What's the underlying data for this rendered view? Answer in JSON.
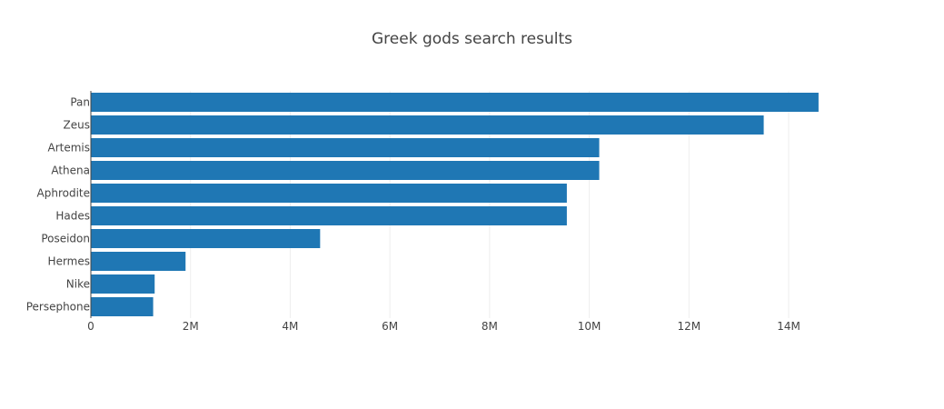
{
  "chart_data": {
    "type": "bar",
    "orientation": "horizontal",
    "title": "Greek gods search results",
    "xlabel": "",
    "ylabel": "",
    "categories": [
      "Pan",
      "Zeus",
      "Artemis",
      "Athena",
      "Aphrodite",
      "Hades",
      "Poseidon",
      "Hermes",
      "Nike",
      "Persephone"
    ],
    "values": [
      14600000,
      13500000,
      10200000,
      10200000,
      9550000,
      9550000,
      4600000,
      1900000,
      1280000,
      1250000
    ],
    "xlim": [
      0,
      15500000
    ],
    "x_ticks": [
      0,
      2000000,
      4000000,
      6000000,
      8000000,
      10000000,
      12000000,
      14000000
    ],
    "x_tick_labels": [
      "0",
      "2M",
      "4M",
      "6M",
      "8M",
      "10M",
      "12M",
      "14M"
    ],
    "grid": "vertical",
    "bar_color": "#1f77b4"
  }
}
